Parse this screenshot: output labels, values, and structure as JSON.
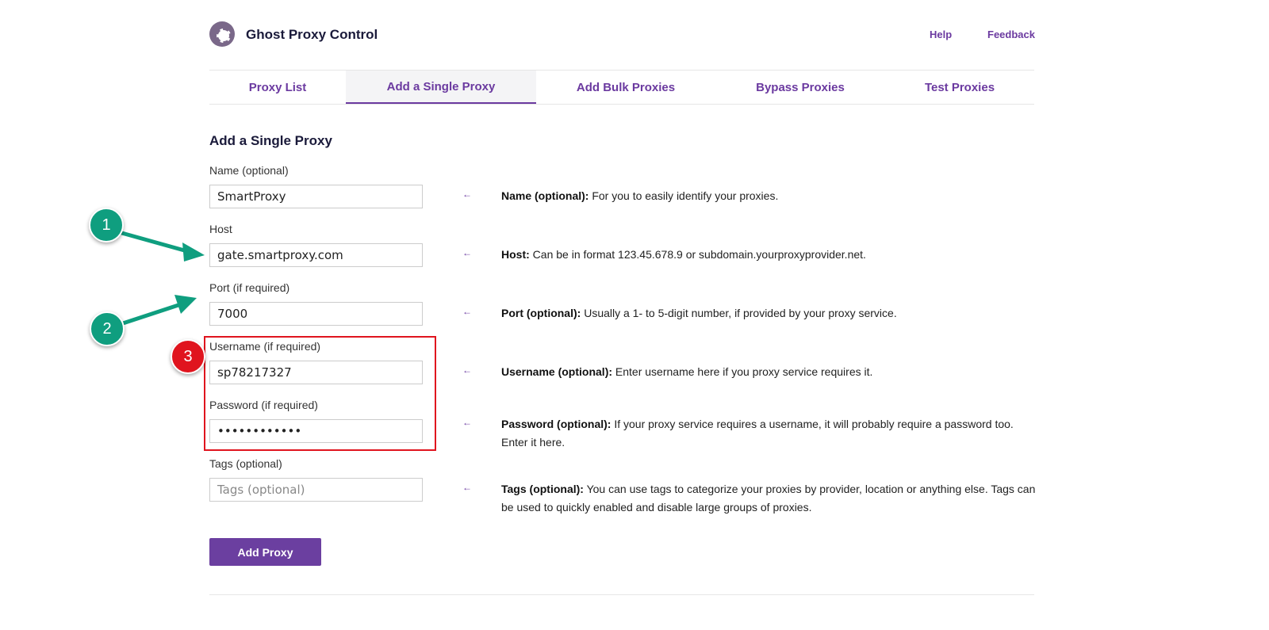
{
  "app": {
    "title": "Ghost Proxy Control",
    "help": "Help",
    "feedback": "Feedback"
  },
  "tabs": [
    {
      "label": "Proxy List"
    },
    {
      "label": "Add a Single Proxy",
      "active": true
    },
    {
      "label": "Add Bulk Proxies"
    },
    {
      "label": "Bypass Proxies"
    },
    {
      "label": "Test Proxies"
    }
  ],
  "form": {
    "heading": "Add a Single Proxy",
    "fields": [
      {
        "label": "Name (optional)",
        "value": "SmartProxy",
        "hint_title": "Name (optional):",
        "hint": " For you to easily identify your proxies."
      },
      {
        "label": "Host",
        "value": "gate.smartproxy.com",
        "hint_title": "Host:",
        "hint": " Can be in format 123.45.678.9 or subdomain.yourproxyprovider.net."
      },
      {
        "label": "Port (if required)",
        "value": "7000",
        "hint_title": "Port (optional):",
        "hint": " Usually a 1- to 5-digit number, if provided by your proxy service."
      },
      {
        "label": "Username (if required)",
        "value": "sp78217327",
        "hint_title": "Username (optional):",
        "hint": " Enter username here if you proxy service requires it."
      },
      {
        "label": "Password (if required)",
        "value": "••••••••••••",
        "hint_title": "Password (optional):",
        "hint": " If your proxy service requires a username, it will probably require a password too. Enter it here."
      },
      {
        "label": "Tags (optional)",
        "value": "",
        "placeholder": "Tags (optional)",
        "hint_title": "Tags (optional):",
        "hint": " You can use tags to categorize your proxies by provider, location or anything else. Tags can be used to quickly enabled and disable large groups of proxies."
      }
    ],
    "arrow": "←",
    "submit": "Add Proxy"
  },
  "annotations": {
    "badges": [
      "1",
      "2",
      "3"
    ],
    "colors": {
      "teal": "#0f9e7f",
      "red": "#e0141e",
      "accent": "#6b3aa0"
    }
  }
}
